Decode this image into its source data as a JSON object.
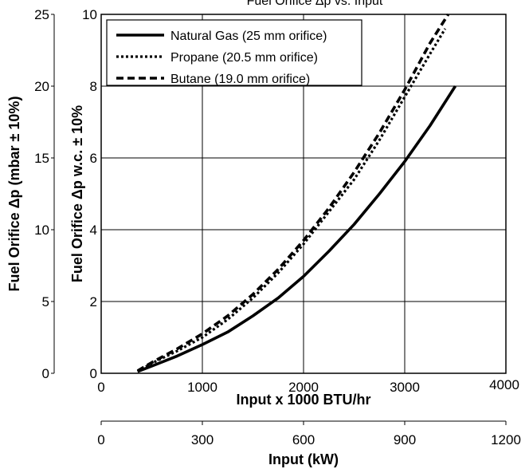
{
  "chart_data": {
    "type": "line",
    "title": "Fuel Orifice Δp vs. Input",
    "xlabel": "Input x 1000 BTU/hr",
    "xlabel_secondary": "Input (kW)",
    "ylabel": "Fuel Orifice Δp w.c. ± 10%",
    "ylabel_secondary": "Fuel Orifice Δp (mbar ± 10%)",
    "xlim": [
      0,
      4000
    ],
    "ylim": [
      0,
      10
    ],
    "x_secondary_lim": [
      0,
      1200
    ],
    "y_secondary_lim": [
      0,
      25
    ],
    "x_ticks": [
      "0",
      "1000",
      "2000",
      "3000",
      "4000"
    ],
    "y_ticks": [
      "0",
      "2",
      "4",
      "6",
      "8",
      "10"
    ],
    "x_secondary_ticks": [
      "0",
      "300",
      "600",
      "900",
      "1200"
    ],
    "y_secondary_ticks": [
      "0",
      "5",
      "10",
      "15",
      "20",
      "25"
    ],
    "grid": true,
    "legend_position": "top-left",
    "series": [
      {
        "name": "Natural Gas (25 mm orifice)",
        "style": "solid",
        "x": [
          360,
          500,
          750,
          1000,
          1250,
          1500,
          1750,
          2000,
          2250,
          2500,
          2750,
          3000,
          3250,
          3500
        ],
        "y": [
          0.05,
          0.2,
          0.48,
          0.8,
          1.15,
          1.6,
          2.1,
          2.7,
          3.4,
          4.15,
          5.0,
          5.9,
          6.9,
          8.0
        ]
      },
      {
        "name": "Propane (20.5 mm orifice)",
        "style": "dotted",
        "x": [
          360,
          500,
          750,
          1000,
          1250,
          1500,
          1750,
          2000,
          2250,
          2500,
          2750,
          3000,
          3250,
          3400
        ],
        "y": [
          0.05,
          0.28,
          0.62,
          1.0,
          1.5,
          2.1,
          2.8,
          3.6,
          4.5,
          5.4,
          6.5,
          7.7,
          8.9,
          9.6
        ]
      },
      {
        "name": "Butane (19.0 mm orifice)",
        "style": "dashed",
        "x": [
          360,
          500,
          750,
          1000,
          1250,
          1500,
          1750,
          2000,
          2250,
          2500,
          2750,
          3000,
          3250,
          3430
        ],
        "y": [
          0.07,
          0.3,
          0.68,
          1.1,
          1.6,
          2.2,
          2.9,
          3.7,
          4.6,
          5.6,
          6.7,
          7.9,
          9.2,
          10.0
        ]
      }
    ]
  }
}
